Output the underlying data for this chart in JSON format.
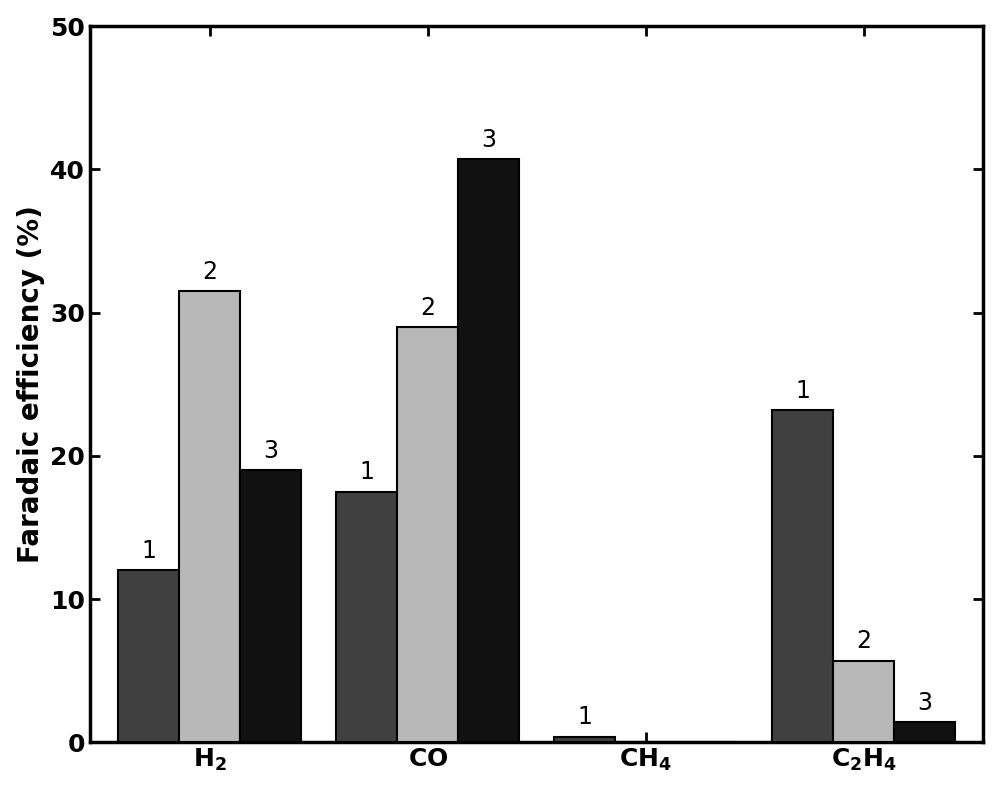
{
  "series": {
    "1": [
      12.0,
      17.5,
      0.4,
      23.2
    ],
    "2": [
      31.5,
      29.0,
      0.0,
      5.7
    ],
    "3": [
      19.0,
      40.7,
      0.0,
      1.4
    ]
  },
  "colors": {
    "1": "#404040",
    "2": "#b8b8b8",
    "3": "#111111"
  },
  "ylabel": "Faradaic efficiency (%)",
  "ylim": [
    0,
    50
  ],
  "yticks": [
    0,
    10,
    20,
    30,
    40,
    50
  ],
  "bar_width": 0.28,
  "label_fontsize": 20,
  "tick_fontsize": 18,
  "annotation_fontsize": 17,
  "background_color": "#ffffff",
  "bar_edge_color": "#000000",
  "bar_edge_width": 1.5
}
